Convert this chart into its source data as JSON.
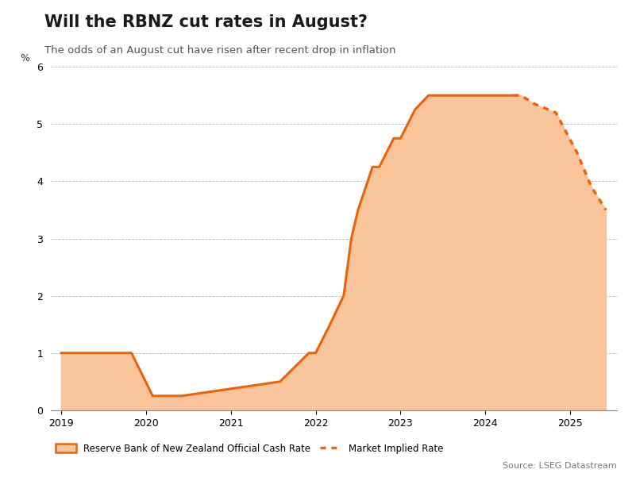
{
  "title": "Will the RBNZ cut rates in August?",
  "subtitle": "The odds of an August cut have risen after recent drop in inflation",
  "ylabel": "%",
  "source": "Source: LSEG Datastream",
  "fill_color": "#F9C49A",
  "line_color": "#E8640A",
  "ylim": [
    0,
    6
  ],
  "yticks": [
    0,
    1,
    2,
    3,
    4,
    5,
    6
  ],
  "background_color": "#FFFFFF",
  "legend_label_solid": "Reserve Bank of New Zealand Official Cash Rate",
  "legend_label_dotted": "Market Implied Rate",
  "ocr_dates": [
    2019.0,
    2019.08,
    2019.08,
    2019.33,
    2019.33,
    2019.5,
    2019.5,
    2019.67,
    2019.67,
    2019.83,
    2019.83,
    2020.08,
    2020.08,
    2020.17,
    2020.17,
    2020.25,
    2020.25,
    2020.42,
    2020.42,
    2021.58,
    2021.58,
    2021.75,
    2021.75,
    2021.92,
    2021.92,
    2022.0,
    2022.0,
    2022.17,
    2022.17,
    2022.33,
    2022.33,
    2022.42,
    2022.42,
    2022.5,
    2022.5,
    2022.67,
    2022.67,
    2022.75,
    2022.75,
    2022.92,
    2022.92,
    2023.0,
    2023.0,
    2023.17,
    2023.17,
    2023.33,
    2023.33,
    2023.5,
    2023.5,
    2024.25,
    2024.25,
    2024.33
  ],
  "ocr_values": [
    1.0,
    1.0,
    1.0,
    1.0,
    1.0,
    1.0,
    1.0,
    1.0,
    1.0,
    1.0,
    1.0,
    0.25,
    0.25,
    0.25,
    0.25,
    0.25,
    0.25,
    0.25,
    0.25,
    0.5,
    0.5,
    0.75,
    0.75,
    1.0,
    1.0,
    1.0,
    1.0,
    1.5,
    1.5,
    2.0,
    2.0,
    3.0,
    3.0,
    3.5,
    3.5,
    4.25,
    4.25,
    4.25,
    4.25,
    4.75,
    4.75,
    4.75,
    4.75,
    5.25,
    5.25,
    5.5,
    5.5,
    5.5,
    5.5,
    5.5,
    5.5,
    5.5
  ],
  "market_dates": [
    2024.33,
    2024.42,
    2024.58,
    2024.83,
    2025.08,
    2025.25,
    2025.42
  ],
  "market_values": [
    5.5,
    5.5,
    5.35,
    5.2,
    4.5,
    3.9,
    3.5
  ]
}
